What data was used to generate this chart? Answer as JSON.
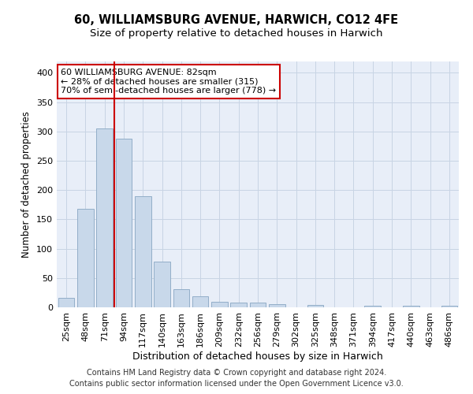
{
  "title": "60, WILLIAMSBURG AVENUE, HARWICH, CO12 4FE",
  "subtitle": "Size of property relative to detached houses in Harwich",
  "xlabel": "Distribution of detached houses by size in Harwich",
  "ylabel": "Number of detached properties",
  "categories": [
    "25sqm",
    "48sqm",
    "71sqm",
    "94sqm",
    "117sqm",
    "140sqm",
    "163sqm",
    "186sqm",
    "209sqm",
    "232sqm",
    "256sqm",
    "279sqm",
    "302sqm",
    "325sqm",
    "348sqm",
    "371sqm",
    "394sqm",
    "417sqm",
    "440sqm",
    "463sqm",
    "486sqm"
  ],
  "bar_heights": [
    16,
    168,
    305,
    288,
    190,
    78,
    31,
    19,
    10,
    8,
    8,
    6,
    0,
    4,
    0,
    0,
    3,
    0,
    3,
    0,
    3
  ],
  "bar_color": "#c8d8ea",
  "bar_edge_color": "#92aec8",
  "property_line_bin": 2.5,
  "annotation_line1": "60 WILLIAMSBURG AVENUE: 82sqm",
  "annotation_line2": "← 28% of detached houses are smaller (315)",
  "annotation_line3": "70% of semi-detached houses are larger (778) →",
  "annotation_box_color": "#ffffff",
  "annotation_box_edge_color": "#cc0000",
  "line_color": "#cc0000",
  "ylim": [
    0,
    420
  ],
  "yticks": [
    0,
    50,
    100,
    150,
    200,
    250,
    300,
    350,
    400
  ],
  "grid_color": "#c8d4e4",
  "background_color": "#e8eef8",
  "footer_line1": "Contains HM Land Registry data © Crown copyright and database right 2024.",
  "footer_line2": "Contains public sector information licensed under the Open Government Licence v3.0.",
  "title_fontsize": 10.5,
  "subtitle_fontsize": 9.5,
  "xlabel_fontsize": 9,
  "ylabel_fontsize": 8.5,
  "tick_fontsize": 8,
  "footer_fontsize": 7,
  "ann_fontsize": 8
}
